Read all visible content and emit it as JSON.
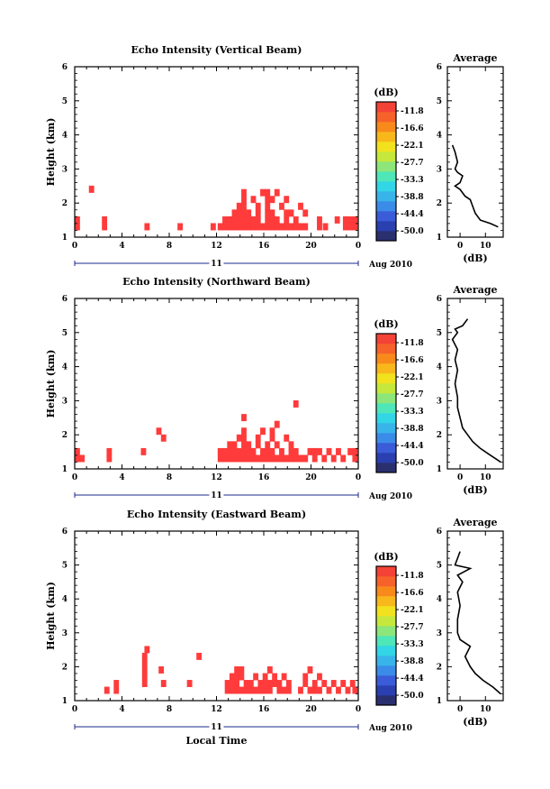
{
  "colors": {
    "echo": "#ff3b3b",
    "colorbar": [
      "#2a2f6e",
      "#2a3fb0",
      "#3a5cd8",
      "#3a8ce8",
      "#39b4ea",
      "#32d6e6",
      "#4fe6b8",
      "#8ce67a",
      "#c6e83c",
      "#f2e21e",
      "#f8b81c",
      "#f88a1c",
      "#f6622a",
      "#f44236"
    ]
  },
  "xaxis": {
    "ticks": [
      "0",
      "4",
      "8",
      "12",
      "16",
      "20",
      "0"
    ],
    "date_label": "11",
    "month_label": "Aug 2010",
    "label": "Local Time"
  },
  "colorbar": {
    "title": "(dB)",
    "labels": [
      "-11.8",
      "-16.6",
      "-22.1",
      "-27.7",
      "-33.3",
      "-38.8",
      "-44.4",
      "-50.0"
    ]
  },
  "chart_data": [
    {
      "type": "heatmap",
      "title": "Echo Intensity (Vertical Beam)",
      "xlabel": "",
      "ylabel": "Height (km)",
      "xlim": [
        0,
        24
      ],
      "ylim": [
        1,
        6
      ],
      "yticks": [
        "1",
        "2",
        "3",
        "4",
        "5",
        "6"
      ],
      "cells": [
        [
          0,
          1.2
        ],
        [
          0,
          1.4
        ],
        [
          1.2,
          2.3
        ],
        [
          2.3,
          1.4
        ],
        [
          2.3,
          1.2
        ],
        [
          5.9,
          1.2
        ],
        [
          8.7,
          1.2
        ],
        [
          11.5,
          1.2
        ],
        [
          12.1,
          1.2
        ],
        [
          12.5,
          1.2
        ],
        [
          12.5,
          1.4
        ],
        [
          12.9,
          1.2
        ],
        [
          12.9,
          1.4
        ],
        [
          13.3,
          1.2
        ],
        [
          13.3,
          1.4
        ],
        [
          13.3,
          1.6
        ],
        [
          13.7,
          1.2
        ],
        [
          13.7,
          1.4
        ],
        [
          13.7,
          1.6
        ],
        [
          13.7,
          1.8
        ],
        [
          14.1,
          1.2
        ],
        [
          14.1,
          1.4
        ],
        [
          14.1,
          1.6
        ],
        [
          14.1,
          1.8
        ],
        [
          14.1,
          2.0
        ],
        [
          14.1,
          2.2
        ],
        [
          14.5,
          1.2
        ],
        [
          14.5,
          1.4
        ],
        [
          14.5,
          1.6
        ],
        [
          14.9,
          1.2
        ],
        [
          14.9,
          1.4
        ],
        [
          14.9,
          2.0
        ],
        [
          15.3,
          1.2
        ],
        [
          15.3,
          1.4
        ],
        [
          15.3,
          1.6
        ],
        [
          15.3,
          1.8
        ],
        [
          15.7,
          1.2
        ],
        [
          15.7,
          2.2
        ],
        [
          16.1,
          1.2
        ],
        [
          16.1,
          1.4
        ],
        [
          16.1,
          1.6
        ],
        [
          16.1,
          1.8
        ],
        [
          16.1,
          2.0
        ],
        [
          16.1,
          2.2
        ],
        [
          16.5,
          1.2
        ],
        [
          16.5,
          1.4
        ],
        [
          16.5,
          1.6
        ],
        [
          16.5,
          2.0
        ],
        [
          16.9,
          1.2
        ],
        [
          16.9,
          1.4
        ],
        [
          16.9,
          2.2
        ],
        [
          17.3,
          1.2
        ],
        [
          17.3,
          1.8
        ],
        [
          17.7,
          1.2
        ],
        [
          17.7,
          1.4
        ],
        [
          17.7,
          1.6
        ],
        [
          17.7,
          2.0
        ],
        [
          18.1,
          1.2
        ],
        [
          18.1,
          1.6
        ],
        [
          18.5,
          1.2
        ],
        [
          18.5,
          1.4
        ],
        [
          18.9,
          1.2
        ],
        [
          18.9,
          1.8
        ],
        [
          19.3,
          1.2
        ],
        [
          19.3,
          1.6
        ],
        [
          20.5,
          1.2
        ],
        [
          20.5,
          1.4
        ],
        [
          21.0,
          1.2
        ],
        [
          22.0,
          1.4
        ],
        [
          22.7,
          1.2
        ],
        [
          22.7,
          1.4
        ],
        [
          23.1,
          1.2
        ],
        [
          23.1,
          1.4
        ],
        [
          23.5,
          1.2
        ],
        [
          23.5,
          1.4
        ]
      ],
      "profile": {
        "title": "Average",
        "xlabel": "(dB)",
        "xticks": [
          "0",
          "10"
        ],
        "xlim": [
          -5,
          17
        ],
        "ylim": [
          1,
          6
        ],
        "points": [
          [
            15,
            1.3
          ],
          [
            12,
            1.4
          ],
          [
            8,
            1.5
          ],
          [
            6,
            1.7
          ],
          [
            5,
            1.9
          ],
          [
            4,
            2.1
          ],
          [
            2,
            2.2
          ],
          [
            1,
            2.3
          ],
          [
            0,
            2.4
          ],
          [
            -2,
            2.5
          ],
          [
            0,
            2.6
          ],
          [
            1,
            2.8
          ],
          [
            -1,
            2.9
          ],
          [
            -2,
            3.0
          ],
          [
            -1,
            3.2
          ],
          [
            -2,
            3.5
          ],
          [
            -3,
            3.7
          ]
        ]
      }
    },
    {
      "type": "heatmap",
      "title": "Echo Intensity (Northward Beam)",
      "xlabel": "",
      "ylabel": "Height (km)",
      "xlim": [
        0,
        24
      ],
      "ylim": [
        1,
        6
      ],
      "yticks": [
        "1",
        "2",
        "3",
        "4",
        "5",
        "6"
      ],
      "cells": [
        [
          0,
          1.2
        ],
        [
          0,
          1.4
        ],
        [
          0.4,
          1.2
        ],
        [
          2.7,
          1.2
        ],
        [
          2.7,
          1.4
        ],
        [
          5.6,
          1.4
        ],
        [
          6.9,
          2.0
        ],
        [
          7.3,
          1.8
        ],
        [
          12.1,
          1.2
        ],
        [
          12.1,
          1.4
        ],
        [
          12.5,
          1.2
        ],
        [
          12.5,
          1.4
        ],
        [
          12.9,
          1.2
        ],
        [
          12.9,
          1.4
        ],
        [
          12.9,
          1.6
        ],
        [
          13.3,
          1.2
        ],
        [
          13.3,
          1.4
        ],
        [
          13.3,
          1.6
        ],
        [
          13.7,
          1.2
        ],
        [
          13.7,
          1.4
        ],
        [
          13.7,
          1.8
        ],
        [
          14.1,
          1.2
        ],
        [
          14.1,
          1.4
        ],
        [
          14.1,
          1.6
        ],
        [
          14.1,
          1.8
        ],
        [
          14.1,
          2.0
        ],
        [
          14.1,
          2.4
        ],
        [
          14.5,
          1.2
        ],
        [
          14.5,
          1.4
        ],
        [
          14.5,
          1.6
        ],
        [
          14.9,
          1.2
        ],
        [
          14.9,
          1.4
        ],
        [
          15.3,
          1.2
        ],
        [
          15.3,
          1.6
        ],
        [
          15.3,
          1.8
        ],
        [
          15.7,
          1.2
        ],
        [
          15.7,
          1.4
        ],
        [
          15.7,
          2.0
        ],
        [
          16.1,
          1.2
        ],
        [
          16.1,
          1.4
        ],
        [
          16.1,
          1.6
        ],
        [
          16.5,
          1.2
        ],
        [
          16.5,
          1.4
        ],
        [
          16.5,
          1.8
        ],
        [
          16.5,
          2.0
        ],
        [
          16.9,
          1.2
        ],
        [
          16.9,
          1.6
        ],
        [
          16.9,
          2.2
        ],
        [
          17.3,
          1.2
        ],
        [
          17.3,
          1.4
        ],
        [
          17.7,
          1.2
        ],
        [
          17.7,
          1.8
        ],
        [
          18.1,
          1.2
        ],
        [
          18.1,
          1.4
        ],
        [
          18.1,
          1.6
        ],
        [
          18.5,
          1.2
        ],
        [
          18.5,
          1.4
        ],
        [
          18.5,
          2.8
        ],
        [
          18.9,
          1.2
        ],
        [
          19.3,
          1.2
        ],
        [
          19.7,
          1.4
        ],
        [
          20.1,
          1.2
        ],
        [
          20.1,
          1.4
        ],
        [
          20.5,
          1.4
        ],
        [
          20.9,
          1.2
        ],
        [
          21.3,
          1.4
        ],
        [
          21.7,
          1.2
        ],
        [
          22.1,
          1.4
        ],
        [
          22.5,
          1.2
        ],
        [
          23.1,
          1.4
        ],
        [
          23.5,
          1.2
        ],
        [
          23.5,
          1.4
        ]
      ],
      "profile": {
        "title": "Average",
        "xlabel": "(dB)",
        "xticks": [
          "0",
          "10"
        ],
        "xlim": [
          -5,
          17
        ],
        "ylim": [
          1,
          6
        ],
        "points": [
          [
            16,
            1.2
          ],
          [
            12,
            1.4
          ],
          [
            8,
            1.6
          ],
          [
            5,
            1.8
          ],
          [
            3,
            2.0
          ],
          [
            1,
            2.2
          ],
          [
            0,
            2.5
          ],
          [
            -1,
            2.8
          ],
          [
            -1,
            3.1
          ],
          [
            -2,
            3.5
          ],
          [
            -1,
            3.9
          ],
          [
            -2,
            4.2
          ],
          [
            -1,
            4.5
          ],
          [
            -3,
            4.8
          ],
          [
            -1,
            5.0
          ],
          [
            -2,
            5.1
          ],
          [
            1,
            5.2
          ],
          [
            3,
            5.4
          ]
        ]
      }
    },
    {
      "type": "heatmap",
      "title": "Echo Intensity (Eastward Beam)",
      "xlabel": "Local Time",
      "ylabel": "Height (km)",
      "xlim": [
        0,
        24
      ],
      "ylim": [
        1,
        6
      ],
      "yticks": [
        "1",
        "2",
        "3",
        "4",
        "5",
        "6"
      ],
      "cells": [
        [
          2.5,
          1.2
        ],
        [
          3.3,
          1.2
        ],
        [
          3.3,
          1.4
        ],
        [
          5.7,
          1.4
        ],
        [
          5.7,
          1.6
        ],
        [
          5.7,
          1.8
        ],
        [
          5.7,
          2.0
        ],
        [
          5.7,
          2.2
        ],
        [
          5.9,
          2.4
        ],
        [
          7.1,
          1.8
        ],
        [
          7.3,
          1.4
        ],
        [
          9.5,
          1.4
        ],
        [
          10.3,
          2.2
        ],
        [
          12.7,
          1.2
        ],
        [
          12.7,
          1.4
        ],
        [
          13.1,
          1.2
        ],
        [
          13.1,
          1.4
        ],
        [
          13.1,
          1.6
        ],
        [
          13.5,
          1.2
        ],
        [
          13.5,
          1.4
        ],
        [
          13.5,
          1.6
        ],
        [
          13.5,
          1.8
        ],
        [
          13.9,
          1.2
        ],
        [
          13.9,
          1.6
        ],
        [
          13.9,
          1.8
        ],
        [
          14.3,
          1.2
        ],
        [
          14.3,
          1.4
        ],
        [
          14.7,
          1.2
        ],
        [
          14.7,
          1.4
        ],
        [
          15.1,
          1.2
        ],
        [
          15.1,
          1.6
        ],
        [
          15.5,
          1.2
        ],
        [
          15.5,
          1.4
        ],
        [
          15.9,
          1.2
        ],
        [
          15.9,
          1.4
        ],
        [
          15.9,
          1.6
        ],
        [
          16.3,
          1.2
        ],
        [
          16.3,
          1.4
        ],
        [
          16.3,
          1.8
        ],
        [
          16.7,
          1.4
        ],
        [
          16.7,
          1.6
        ],
        [
          17.1,
          1.2
        ],
        [
          17.1,
          1.4
        ],
        [
          17.5,
          1.2
        ],
        [
          17.5,
          1.6
        ],
        [
          17.9,
          1.2
        ],
        [
          17.9,
          1.4
        ],
        [
          18.9,
          1.2
        ],
        [
          19.3,
          1.4
        ],
        [
          19.3,
          1.6
        ],
        [
          19.7,
          1.2
        ],
        [
          19.7,
          1.8
        ],
        [
          20.1,
          1.2
        ],
        [
          20.1,
          1.4
        ],
        [
          20.5,
          1.2
        ],
        [
          20.5,
          1.6
        ],
        [
          20.9,
          1.4
        ],
        [
          21.3,
          1.2
        ],
        [
          21.7,
          1.4
        ],
        [
          22.1,
          1.2
        ],
        [
          22.5,
          1.4
        ],
        [
          22.9,
          1.2
        ],
        [
          23.3,
          1.4
        ],
        [
          23.5,
          1.2
        ]
      ],
      "profile": {
        "title": "Average",
        "xlabel": "(dB)",
        "xticks": [
          "0",
          "10"
        ],
        "xlim": [
          -5,
          17
        ],
        "ylim": [
          1,
          6
        ],
        "points": [
          [
            16,
            1.2
          ],
          [
            13,
            1.4
          ],
          [
            9,
            1.6
          ],
          [
            6,
            1.8
          ],
          [
            4,
            2.0
          ],
          [
            2,
            2.3
          ],
          [
            4,
            2.6
          ],
          [
            0,
            2.8
          ],
          [
            -1,
            3.0
          ],
          [
            -1,
            3.4
          ],
          [
            0,
            3.8
          ],
          [
            -1,
            4.2
          ],
          [
            1,
            4.5
          ],
          [
            -1,
            4.7
          ],
          [
            4,
            4.9
          ],
          [
            -2,
            5.0
          ],
          [
            -1,
            5.2
          ],
          [
            0,
            5.4
          ]
        ]
      }
    }
  ]
}
